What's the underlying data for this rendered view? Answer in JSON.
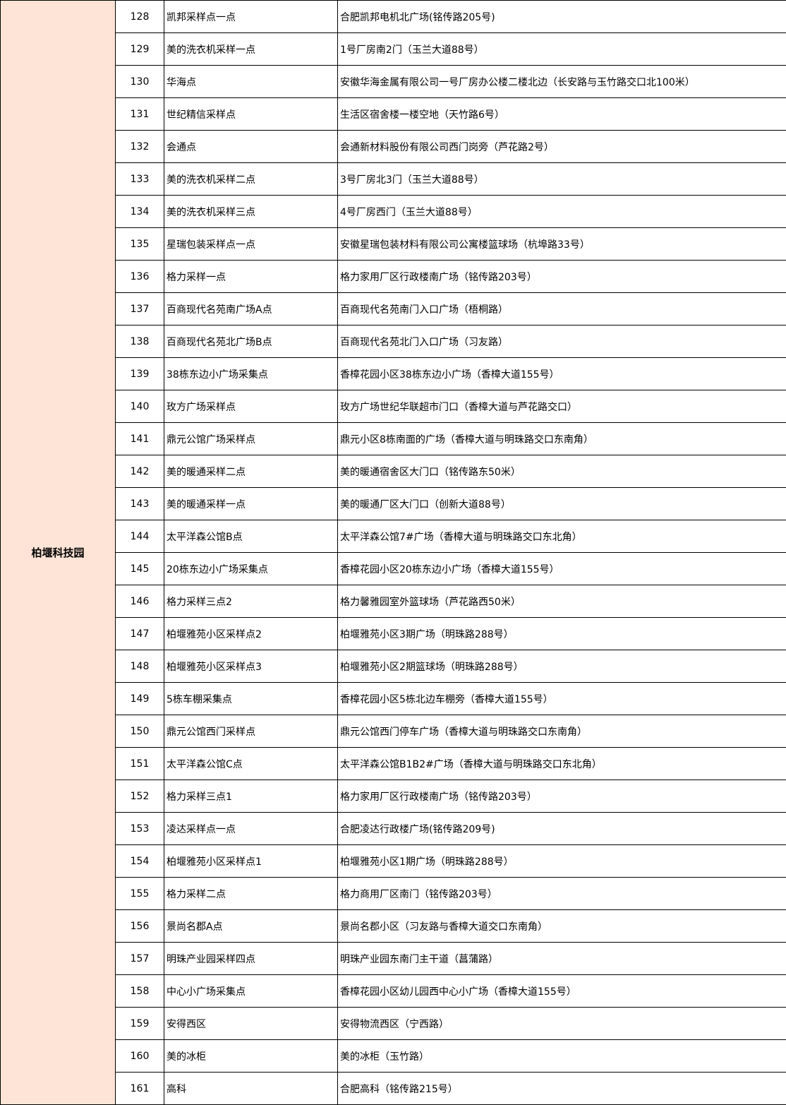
{
  "region": "柏堰科技园",
  "region_bg": "#fde4d6",
  "rows": [
    {
      "no": "128",
      "name": "凯邦采样点一点",
      "address": "合肥凯邦电机北广场(铭传路205号)"
    },
    {
      "no": "129",
      "name": "美的洗衣机采样一点",
      "address": "1号厂房南2门（玉兰大道88号）"
    },
    {
      "no": "130",
      "name": "华海点",
      "address": "安徽华海金属有限公司一号厂房办公楼二楼北边（长安路与玉竹路交口北100米）"
    },
    {
      "no": "131",
      "name": "世纪精信采样点",
      "address": "生活区宿舍楼一楼空地（天竹路6号）"
    },
    {
      "no": "132",
      "name": "会通点",
      "address": "会通新材料股份有限公司西门岗旁（芦花路2号）"
    },
    {
      "no": "133",
      "name": "美的洗衣机采样二点",
      "address": "3号厂房北3门（玉兰大道88号）"
    },
    {
      "no": "134",
      "name": "美的洗衣机采样三点",
      "address": "4号厂房西门（玉兰大道88号）"
    },
    {
      "no": "135",
      "name": "星瑞包装采样点一点",
      "address": "安徽星瑞包装材料有限公司公寓楼篮球场（杭埠路33号）"
    },
    {
      "no": "136",
      "name": "格力采样一点",
      "address": "格力家用厂区行政楼南广场（铭传路203号）"
    },
    {
      "no": "137",
      "name": "百商现代名苑南广场A点",
      "address": "百商现代名苑南门入口广场（梧桐路）"
    },
    {
      "no": "138",
      "name": "百商现代名苑北广场B点",
      "address": "百商现代名苑北门入口广场（习友路）"
    },
    {
      "no": "139",
      "name": "38栋东边小广场采集点",
      "address": "香樟花园小区38栋东边小广场（香樟大道155号）"
    },
    {
      "no": "140",
      "name": "玫方广场采样点",
      "address": "玫方广场世纪华联超市门口（香樟大道与芦花路交口）"
    },
    {
      "no": "141",
      "name": "鼎元公馆广场采样点",
      "address": "鼎元小区8栋南面的广场（香樟大道与明珠路交口东南角）"
    },
    {
      "no": "142",
      "name": "美的暖通采样二点",
      "address": "美的暖通宿舍区大门口（铭传路东50米）"
    },
    {
      "no": "143",
      "name": "美的暖通采样一点",
      "address": "美的暖通厂区大门口（创新大道88号）"
    },
    {
      "no": "144",
      "name": "太平洋森公馆B点",
      "address": "太平洋森公馆7#广场（香樟大道与明珠路交口东北角）"
    },
    {
      "no": "145",
      "name": "20栋东边小广场采集点",
      "address": "香樟花园小区20栋东边小广场（香樟大道155号）"
    },
    {
      "no": "146",
      "name": "格力采样三点2",
      "address": "格力馨雅园室外篮球场（芦花路西50米）"
    },
    {
      "no": "147",
      "name": "柏堰雅苑小区采样点2",
      "address": "柏堰雅苑小区3期广场（明珠路288号）"
    },
    {
      "no": "148",
      "name": "柏堰雅苑小区采样点3",
      "address": "柏堰雅苑小区2期篮球场（明珠路288号）"
    },
    {
      "no": "149",
      "name": "5栋车棚采集点",
      "address": "香樟花园小区5栋北边车棚旁（香樟大道155号）"
    },
    {
      "no": "150",
      "name": "鼎元公馆西门采样点",
      "address": "鼎元公馆西门停车广场（香樟大道与明珠路交口东南角）"
    },
    {
      "no": "151",
      "name": "太平洋森公馆C点",
      "address": "太平洋森公馆B1B2#广场（香樟大道与明珠路交口东北角）"
    },
    {
      "no": "152",
      "name": "格力采样三点1",
      "address": "格力家用厂区行政楼南广场（铭传路203号）"
    },
    {
      "no": "153",
      "name": "凌达采样点一点",
      "address": "合肥凌达行政楼广场(铭传路209号)"
    },
    {
      "no": "154",
      "name": "柏堰雅苑小区采样点1",
      "address": "柏堰雅苑小区1期广场（明珠路288号）"
    },
    {
      "no": "155",
      "name": "格力采样二点",
      "address": "格力商用厂区南门（铭传路203号）"
    },
    {
      "no": "156",
      "name": "景尚名郡A点",
      "address": "景尚名郡小区（习友路与香樟大道交口东南角）"
    },
    {
      "no": "157",
      "name": "明珠产业园采样四点",
      "address": "明珠产业园东南门主干道（菖蒲路）"
    },
    {
      "no": "158",
      "name": "中心小广场采集点",
      "address": "香樟花园小区幼儿园西中心小广场（香樟大道155号）"
    },
    {
      "no": "159",
      "name": "安得西区",
      "address": "安得物流西区（宁西路）"
    },
    {
      "no": "160",
      "name": "美的冰柜",
      "address": "美的冰柜（玉竹路）"
    },
    {
      "no": "161",
      "name": "高科",
      "address": "合肥高科（铭传路215号）"
    }
  ]
}
